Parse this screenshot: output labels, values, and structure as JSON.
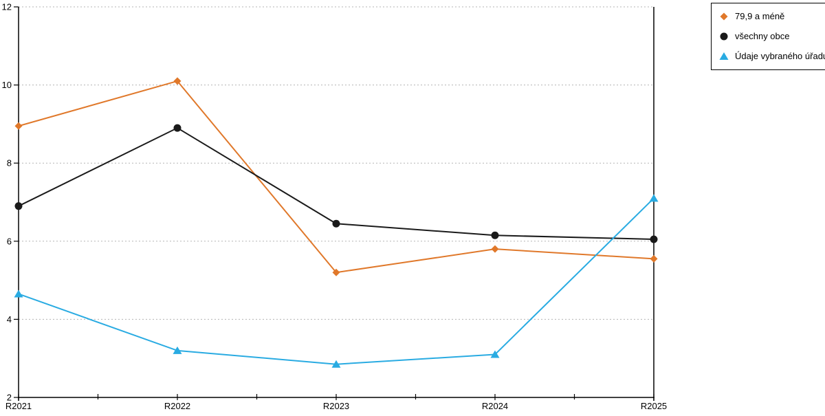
{
  "chart_data": {
    "type": "line",
    "categories": [
      "R2021",
      "R2022",
      "R2023",
      "R2024",
      "R2025"
    ],
    "series": [
      {
        "name": "79,9 a méně",
        "marker": "diamond",
        "color": "#E0782A",
        "values": [
          8.95,
          10.1,
          5.2,
          5.8,
          5.55
        ]
      },
      {
        "name": "všechny obce",
        "marker": "circle",
        "color": "#1A1A1A",
        "values": [
          6.9,
          8.9,
          6.45,
          6.15,
          6.05
        ]
      },
      {
        "name": "Údaje vybraného úřadu",
        "marker": "triangle",
        "color": "#29ABE2",
        "values": [
          4.65,
          3.2,
          2.85,
          3.1,
          7.1
        ]
      }
    ],
    "title": "",
    "xlabel": "",
    "ylabel": "",
    "ylim": [
      2,
      12
    ],
    "ytick_step": 2,
    "ytick_labels": [
      "2",
      "4",
      "6",
      "8",
      "10",
      "12"
    ],
    "grid": "horizontal-dotted",
    "grid_color": "#B3B3B3",
    "axis_color": "#000000",
    "legend_position": "top-right",
    "legend_border_color": "#000000"
  }
}
